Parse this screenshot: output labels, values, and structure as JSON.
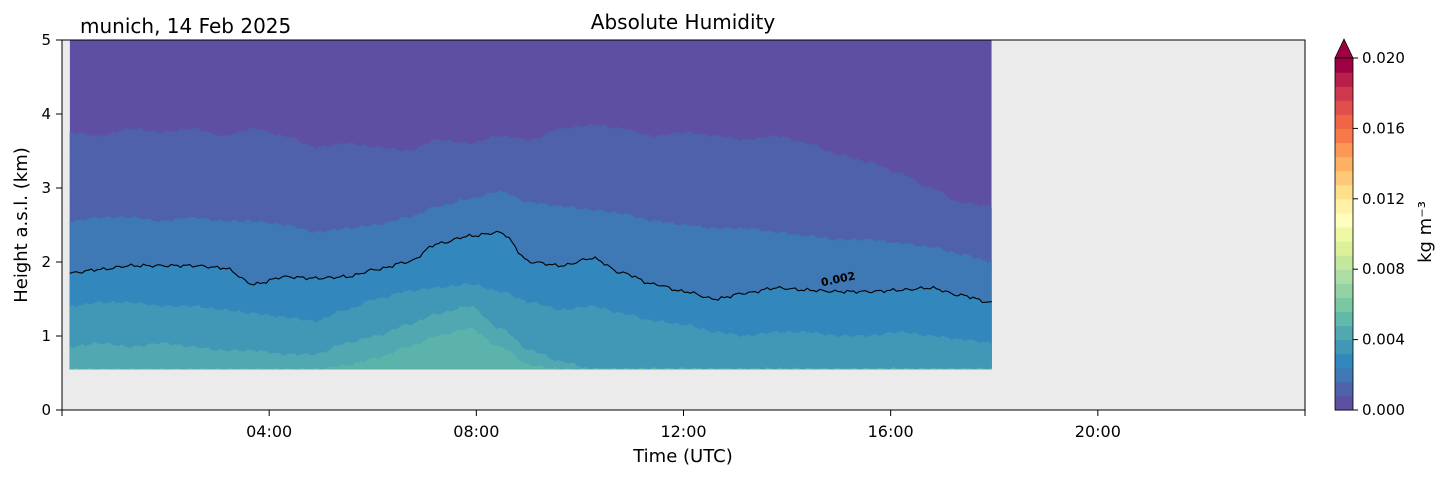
{
  "chart_data": {
    "type": "heatmap",
    "title": "Absolute Humidity",
    "location_date": "munich, 14 Feb 2025",
    "xlabel": "Time (UTC)",
    "ylabel": "Height a.s.l. (km)",
    "xlim_hours": [
      0,
      24
    ],
    "ylim_km": [
      0,
      5
    ],
    "x_ticks": [
      {
        "hour": 4,
        "label": "04:00"
      },
      {
        "hour": 8,
        "label": "08:00"
      },
      {
        "hour": 12,
        "label": "12:00"
      },
      {
        "hour": 16,
        "label": "16:00"
      },
      {
        "hour": 20,
        "label": "20:00"
      }
    ],
    "y_ticks": [
      {
        "value": 0,
        "label": "0"
      },
      {
        "value": 1,
        "label": "1"
      },
      {
        "value": 2,
        "label": "2"
      },
      {
        "value": 3,
        "label": "3"
      },
      {
        "value": 4,
        "label": "4"
      },
      {
        "value": 5,
        "label": "5"
      }
    ],
    "data_extent": {
      "t_start_hours": 0.15,
      "t_end_hours": 17.95,
      "h_bottom_km": 0.55,
      "h_top_km": 5.0
    },
    "missing_data_color": "#ebebeb",
    "colorbar": {
      "label": "kg m⁻³",
      "range": [
        0.0,
        0.02
      ],
      "extend": "max",
      "ticks": [
        {
          "value": 0.0,
          "label": "0.000"
        },
        {
          "value": 0.004,
          "label": "0.004"
        },
        {
          "value": 0.008,
          "label": "0.008"
        },
        {
          "value": 0.012,
          "label": "0.012"
        },
        {
          "value": 0.016,
          "label": "0.016"
        },
        {
          "value": 0.02,
          "label": "0.020"
        }
      ],
      "colors": [
        "#5e4fa2",
        "#4f61aa",
        "#3e78b5",
        "#3288bd",
        "#4198b6",
        "#51a8b0",
        "#62b8a9",
        "#7ac7a4",
        "#94d2a4",
        "#abdda4",
        "#c4e79e",
        "#dbf099",
        "#eff8a5",
        "#fffebe",
        "#fff1a6",
        "#fee08b",
        "#fdc877",
        "#fdb163",
        "#fb9757",
        "#f67a49",
        "#ef6545",
        "#e04f4b",
        "#d0384e",
        "#b81e49",
        "#9e0142"
      ],
      "over_color": "#9e0142"
    },
    "contour_bands": [
      {
        "name": "band-0.000-0.001",
        "color": "#5e4fa2",
        "upper_km": null
      },
      {
        "name": "band-0.001-0.0015",
        "color": "#4f61aa",
        "upper_km": [
          3.75,
          3.7,
          3.8,
          3.75,
          3.8,
          3.7,
          3.8,
          3.7,
          3.55,
          3.6,
          3.55,
          3.5,
          3.65,
          3.6,
          3.7,
          3.65,
          3.8,
          3.85,
          3.8,
          3.7,
          3.75,
          3.7,
          3.65,
          3.7,
          3.6,
          3.45,
          3.35,
          3.2,
          3.0,
          2.8,
          2.75
        ]
      },
      {
        "name": "band-0.0015-0.002",
        "color": "#3e78b5",
        "upper_km": [
          2.55,
          2.6,
          2.6,
          2.55,
          2.6,
          2.55,
          2.55,
          2.5,
          2.4,
          2.45,
          2.5,
          2.6,
          2.75,
          2.85,
          2.95,
          2.8,
          2.75,
          2.7,
          2.65,
          2.55,
          2.5,
          2.45,
          2.45,
          2.4,
          2.35,
          2.3,
          2.3,
          2.25,
          2.2,
          2.1,
          2.0
        ]
      },
      {
        "name": "band-0.002-0.003",
        "color": "#3288bd",
        "upper_km": [
          1.85,
          1.9,
          1.95,
          1.95,
          1.95,
          1.92,
          1.7,
          1.8,
          1.78,
          1.8,
          1.9,
          2.0,
          2.25,
          2.35,
          2.4,
          2.0,
          1.95,
          2.05,
          1.85,
          1.7,
          1.6,
          1.5,
          1.58,
          1.65,
          1.62,
          1.6,
          1.6,
          1.62,
          1.65,
          1.55,
          1.45
        ]
      },
      {
        "name": "band-0.003-0.004",
        "color": "#4198b6",
        "upper_km": [
          1.4,
          1.45,
          1.45,
          1.4,
          1.4,
          1.35,
          1.3,
          1.25,
          1.2,
          1.35,
          1.5,
          1.6,
          1.65,
          1.7,
          1.6,
          1.45,
          1.35,
          1.4,
          1.3,
          1.2,
          1.15,
          1.05,
          1.0,
          1.05,
          1.05,
          1.0,
          1.0,
          1.05,
          1.0,
          0.95,
          0.9
        ]
      },
      {
        "name": "band-0.004-0.005",
        "color": "#51a8b0",
        "upper_km": [
          0.85,
          0.9,
          0.85,
          0.9,
          0.85,
          0.8,
          0.8,
          0.75,
          0.75,
          0.9,
          1.0,
          1.15,
          1.3,
          1.4,
          1.1,
          0.8,
          0.65,
          0.55,
          0.55,
          0.55,
          0.55,
          0.55,
          0.55,
          0.55,
          0.55,
          0.55,
          0.55,
          0.55,
          0.55,
          0.55,
          0.55
        ]
      },
      {
        "name": "band-0.005-0.006",
        "color": "#5cb3ab",
        "upper_km": [
          0.55,
          0.55,
          0.55,
          0.55,
          0.55,
          0.55,
          0.55,
          0.55,
          0.55,
          0.6,
          0.7,
          0.85,
          1.0,
          1.1,
          0.85,
          0.6,
          0.55,
          0.55,
          0.55,
          0.55,
          0.55,
          0.55,
          0.55,
          0.55,
          0.55,
          0.55,
          0.55,
          0.55,
          0.55,
          0.55,
          0.55
        ]
      }
    ],
    "contour_line": {
      "label": "0.002",
      "label_position": {
        "hour": 15.0,
        "km": 1.72
      },
      "heights_km": [
        1.85,
        1.9,
        1.95,
        1.95,
        1.95,
        1.92,
        1.7,
        1.8,
        1.78,
        1.8,
        1.9,
        2.0,
        2.25,
        2.35,
        2.4,
        2.0,
        1.95,
        2.05,
        1.85,
        1.7,
        1.6,
        1.5,
        1.58,
        1.65,
        1.62,
        1.6,
        1.6,
        1.62,
        1.65,
        1.55,
        1.45
      ]
    }
  }
}
